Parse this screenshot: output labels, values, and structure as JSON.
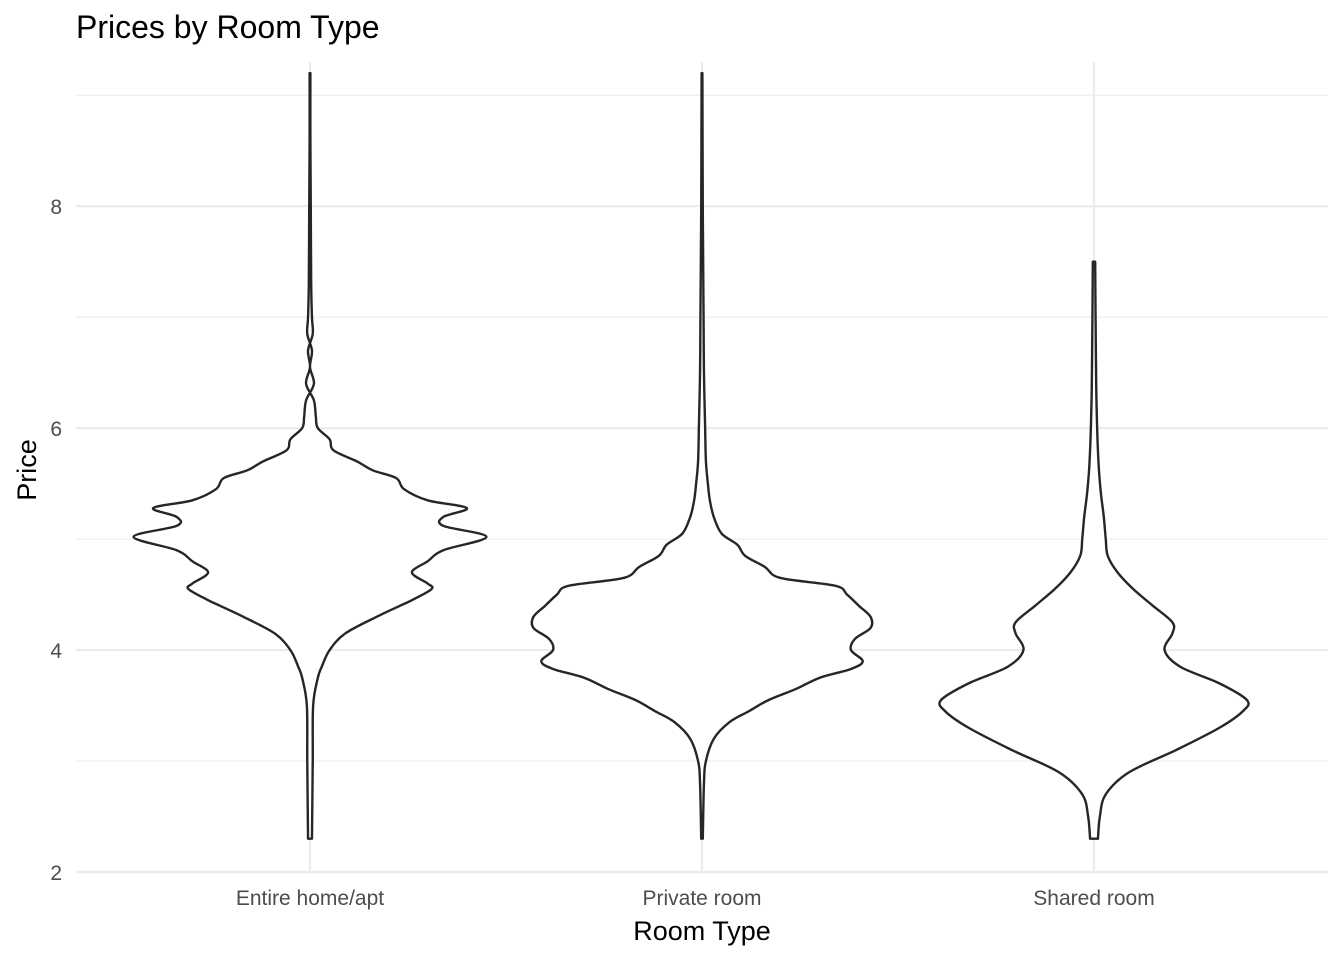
{
  "chart_data": {
    "type": "violin",
    "title": "Prices by Room Type",
    "xlabel": "Room Type",
    "ylabel": "Price",
    "categories": [
      "Entire home/apt",
      "Private room",
      "Shared room"
    ],
    "ylim": [
      2,
      9.3
    ],
    "yticks": [
      2,
      4,
      6,
      8
    ],
    "yminor": [
      3,
      5,
      7,
      9
    ],
    "grid": true,
    "legend": "none",
    "max_half_width_category_units": 0.45,
    "series": [
      {
        "category": "Entire home/apt",
        "min": 2.3,
        "max": 9.2,
        "density": [
          [
            2.3,
            0.005
          ],
          [
            3.0,
            0.007
          ],
          [
            3.5,
            0.008
          ],
          [
            3.75,
            0.02
          ],
          [
            3.85,
            0.03
          ],
          [
            4.0,
            0.05
          ],
          [
            4.15,
            0.09
          ],
          [
            4.3,
            0.17
          ],
          [
            4.4,
            0.23
          ],
          [
            4.45,
            0.26
          ],
          [
            4.55,
            0.31
          ],
          [
            4.6,
            0.3
          ],
          [
            4.7,
            0.26
          ],
          [
            4.8,
            0.3
          ],
          [
            4.9,
            0.34
          ],
          [
            5.02,
            0.45
          ],
          [
            5.12,
            0.34
          ],
          [
            5.2,
            0.34
          ],
          [
            5.28,
            0.4
          ],
          [
            5.35,
            0.3
          ],
          [
            5.45,
            0.24
          ],
          [
            5.55,
            0.22
          ],
          [
            5.62,
            0.16
          ],
          [
            5.7,
            0.12
          ],
          [
            5.8,
            0.06
          ],
          [
            5.9,
            0.05
          ],
          [
            6.0,
            0.02
          ],
          [
            6.1,
            0.015
          ],
          [
            6.25,
            0.01
          ],
          [
            6.4,
            -0.01
          ],
          [
            6.55,
            0.0
          ],
          [
            6.7,
            -0.005
          ],
          [
            6.85,
            0.007
          ],
          [
            7.0,
            0.005
          ],
          [
            7.3,
            0.003
          ],
          [
            8.0,
            0.002
          ],
          [
            8.6,
            0.001
          ],
          [
            9.2,
            0.001
          ]
        ]
      },
      {
        "category": "Private room",
        "min": 2.3,
        "max": 9.2,
        "density": [
          [
            2.3,
            0.002
          ],
          [
            2.8,
            0.005
          ],
          [
            3.0,
            0.01
          ],
          [
            3.2,
            0.03
          ],
          [
            3.35,
            0.07
          ],
          [
            3.45,
            0.12
          ],
          [
            3.55,
            0.17
          ],
          [
            3.65,
            0.24
          ],
          [
            3.75,
            0.3
          ],
          [
            3.83,
            0.38
          ],
          [
            3.9,
            0.41
          ],
          [
            4.0,
            0.38
          ],
          [
            4.1,
            0.39
          ],
          [
            4.2,
            0.43
          ],
          [
            4.3,
            0.43
          ],
          [
            4.4,
            0.4
          ],
          [
            4.5,
            0.37
          ],
          [
            4.58,
            0.34
          ],
          [
            4.65,
            0.2
          ],
          [
            4.75,
            0.16
          ],
          [
            4.85,
            0.11
          ],
          [
            4.95,
            0.09
          ],
          [
            5.05,
            0.05
          ],
          [
            5.2,
            0.03
          ],
          [
            5.35,
            0.02
          ],
          [
            5.5,
            0.015
          ],
          [
            5.7,
            0.01
          ],
          [
            6.0,
            0.008
          ],
          [
            6.5,
            0.005
          ],
          [
            7.0,
            0.004
          ],
          [
            8.0,
            0.002
          ],
          [
            9.2,
            0.001
          ]
        ]
      },
      {
        "category": "Shared room",
        "min": 2.3,
        "max": 7.5,
        "density": [
          [
            2.3,
            0.01
          ],
          [
            2.5,
            0.015
          ],
          [
            2.7,
            0.03
          ],
          [
            2.9,
            0.09
          ],
          [
            3.1,
            0.21
          ],
          [
            3.3,
            0.32
          ],
          [
            3.45,
            0.38
          ],
          [
            3.55,
            0.39
          ],
          [
            3.7,
            0.32
          ],
          [
            3.85,
            0.22
          ],
          [
            4.0,
            0.18
          ],
          [
            4.15,
            0.2
          ],
          [
            4.25,
            0.2
          ],
          [
            4.4,
            0.15
          ],
          [
            4.55,
            0.1
          ],
          [
            4.7,
            0.06
          ],
          [
            4.85,
            0.035
          ],
          [
            5.0,
            0.03
          ],
          [
            5.2,
            0.025
          ],
          [
            5.4,
            0.018
          ],
          [
            5.6,
            0.013
          ],
          [
            5.8,
            0.01
          ],
          [
            6.0,
            0.008
          ],
          [
            6.3,
            0.006
          ],
          [
            6.6,
            0.005
          ],
          [
            7.0,
            0.004
          ],
          [
            7.5,
            0.003
          ]
        ]
      }
    ]
  }
}
